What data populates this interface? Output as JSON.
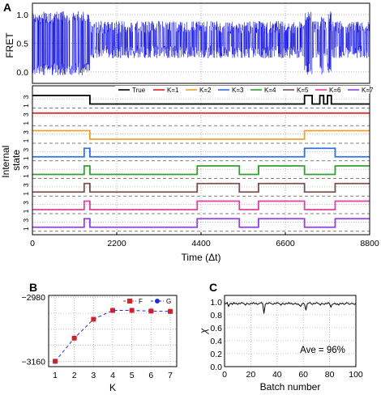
{
  "chart_data": [
    {
      "panel": "A",
      "type": "line",
      "ylabel": "FRET",
      "yticks": [
        "1.0",
        "0.5",
        "0.0"
      ],
      "ylim": [
        -0.2,
        1.2
      ],
      "xlim": [
        0,
        8800
      ],
      "grid": true,
      "series": [
        {
          "color": "#0000dd",
          "style": "noisy two-state FRET trace"
        }
      ]
    },
    {
      "panel": "A",
      "type": "line",
      "ylabel": "Internal state",
      "xlabel": "Time (Δt)",
      "xticks": [
        "0",
        "2200",
        "4400",
        "6600",
        "8800"
      ],
      "xlim": [
        0,
        8800
      ],
      "state_ticks": [
        "1",
        "3"
      ],
      "legend_position": "top-right",
      "grid": true,
      "series": [
        {
          "name": "True",
          "color": "#000000",
          "steps": [
            [
              0,
              0
            ],
            [
              1500,
              1
            ],
            [
              7100,
              0
            ],
            [
              7300,
              1
            ],
            [
              7500,
              0
            ],
            [
              7600,
              1
            ],
            [
              7700,
              0
            ],
            [
              7800,
              1
            ],
            [
              8800,
              1
            ]
          ]
        },
        {
          "name": "K=1",
          "color": "#dd2020",
          "steps": [
            [
              0,
              0
            ],
            [
              8800,
              0
            ]
          ]
        },
        {
          "name": "K=2",
          "color": "#f0a030",
          "steps": [
            [
              0,
              0
            ],
            [
              1500,
              1
            ],
            [
              7100,
              0
            ],
            [
              8800,
              0
            ]
          ]
        },
        {
          "name": "K=3",
          "color": "#3070e0",
          "steps": [
            [
              0,
              1
            ],
            [
              1350,
              0
            ],
            [
              1500,
              1
            ],
            [
              7100,
              0
            ],
            [
              7900,
              1
            ],
            [
              8800,
              1
            ]
          ]
        },
        {
          "name": "K=4",
          "color": "#30a030",
          "steps": [
            [
              0,
              1
            ],
            [
              1350,
              0
            ],
            [
              1500,
              1
            ],
            [
              4300,
              0
            ],
            [
              5400,
              1
            ],
            [
              5900,
              0
            ],
            [
              7100,
              1
            ],
            [
              7900,
              0
            ],
            [
              8800,
              0
            ]
          ]
        },
        {
          "name": "K=5",
          "color": "#7a5050",
          "steps": [
            [
              0,
              1
            ],
            [
              1350,
              0
            ],
            [
              1500,
              1
            ],
            [
              4300,
              0
            ],
            [
              5400,
              1
            ],
            [
              5900,
              0
            ],
            [
              7100,
              1
            ],
            [
              7900,
              0
            ],
            [
              8800,
              0
            ]
          ]
        },
        {
          "name": "K=6",
          "color": "#e040a0",
          "steps": [
            [
              0,
              1
            ],
            [
              1350,
              0
            ],
            [
              1500,
              1
            ],
            [
              4300,
              0
            ],
            [
              5400,
              1
            ],
            [
              5900,
              0
            ],
            [
              7100,
              1
            ],
            [
              7900,
              0
            ],
            [
              8800,
              0
            ]
          ]
        },
        {
          "name": "K=7",
          "color": "#9040e0",
          "steps": [
            [
              0,
              1
            ],
            [
              1350,
              0
            ],
            [
              1500,
              1
            ],
            [
              4300,
              0
            ],
            [
              5400,
              1
            ],
            [
              5900,
              0
            ],
            [
              7100,
              1
            ],
            [
              7900,
              0
            ],
            [
              8800,
              0
            ]
          ]
        }
      ]
    },
    {
      "panel": "B",
      "type": "line",
      "xlabel": "K",
      "categories": [
        1,
        2,
        3,
        4,
        5,
        6,
        7
      ],
      "ylim": [
        -3175,
        -2975
      ],
      "yticks": [
        "−2980",
        "−3160"
      ],
      "xticks": [
        "1",
        "2",
        "3",
        "4",
        "5",
        "6",
        "7"
      ],
      "legend_position": "top-right",
      "grid": true,
      "series": [
        {
          "name": "F",
          "color": "#dd2020",
          "marker": "square",
          "values": [
            -3160,
            -3095,
            -3042,
            -3017,
            -3017,
            -3019,
            -3020
          ]
        },
        {
          "name": "G",
          "color": "#2030d0",
          "marker": "circle",
          "values": [
            -3160,
            -3095,
            -3042,
            -3017,
            -3017,
            -3019,
            -3020
          ]
        }
      ]
    },
    {
      "panel": "C",
      "type": "line",
      "xlabel": "Batch number",
      "ylabel": "χ",
      "xlim": [
        0,
        100
      ],
      "ylim": [
        0.0,
        1.1
      ],
      "xticks": [
        "0",
        "20",
        "40",
        "60",
        "80",
        "100"
      ],
      "yticks": [
        "0.0",
        "0.2",
        "0.4",
        "0.6",
        "0.8",
        "1.0"
      ],
      "annotation": "Ave = 96%",
      "grid": true,
      "series": [
        {
          "color": "#000000",
          "values": [
            0.98,
            0.97,
            0.99,
            0.93,
            0.97,
            0.98,
            0.96,
            0.99,
            0.97,
            0.98,
            0.96,
            0.98,
            0.97,
            0.99,
            0.98,
            0.97,
            0.95,
            0.98,
            0.97,
            0.96,
            0.98,
            0.97,
            0.99,
            0.97,
            0.98,
            0.96,
            0.97,
            0.98,
            0.99,
            0.97,
            0.82,
            0.96,
            0.98,
            0.97,
            0.99,
            0.98,
            0.97,
            0.96,
            0.98,
            0.97,
            0.99,
            0.98,
            0.97,
            0.95,
            0.98,
            0.97,
            0.96,
            0.98,
            0.97,
            0.99,
            0.97,
            0.98,
            0.96,
            0.97,
            0.98,
            0.96,
            0.97,
            0.95,
            0.93,
            0.97,
            0.98,
            0.96,
            0.87,
            0.97,
            0.98,
            0.99,
            0.97,
            0.96,
            0.98,
            0.97,
            0.99,
            0.98,
            0.97,
            0.95,
            0.98,
            0.97,
            0.96,
            0.98,
            0.97,
            0.99,
            0.97,
            0.92,
            0.96,
            0.97,
            0.98,
            0.96,
            0.97,
            0.95,
            0.98,
            0.97,
            0.98,
            0.96,
            0.97,
            0.99,
            0.98,
            0.96,
            0.97,
            0.98,
            0.97,
            0.96,
            0.98
          ]
        }
      ]
    }
  ],
  "labels": {
    "panel_a": "A",
    "panel_b": "B",
    "panel_c": "C"
  }
}
